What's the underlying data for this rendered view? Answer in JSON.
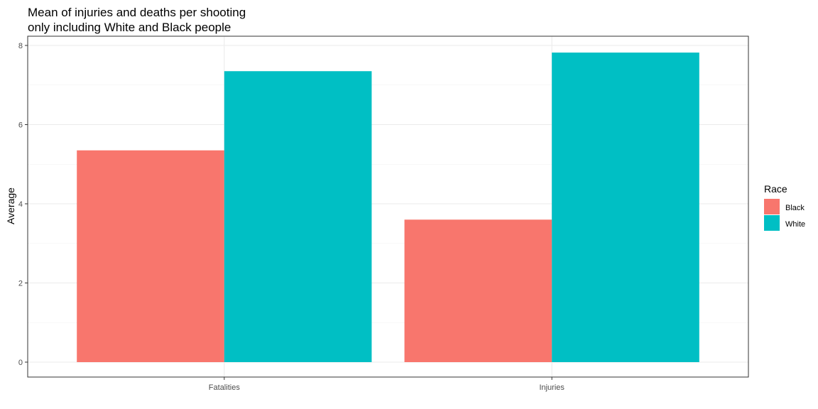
{
  "chart_data": {
    "type": "bar",
    "title_lines": [
      "Mean of injuries and deaths per shooting",
      "only including White and Black people"
    ],
    "xlabel": "",
    "ylabel": "Average",
    "categories": [
      "Fatalities",
      "Injuries"
    ],
    "series": [
      {
        "name": "Black",
        "color": "#F8766D",
        "values": [
          5.35,
          3.6
        ]
      },
      {
        "name": "White",
        "color": "#00BFC4",
        "values": [
          7.35,
          7.82
        ]
      }
    ],
    "ylim": [
      0,
      8
    ],
    "yticks": [
      0,
      2,
      4,
      6,
      8
    ],
    "grid": true,
    "legend": {
      "title": "Race",
      "position": "right"
    }
  }
}
